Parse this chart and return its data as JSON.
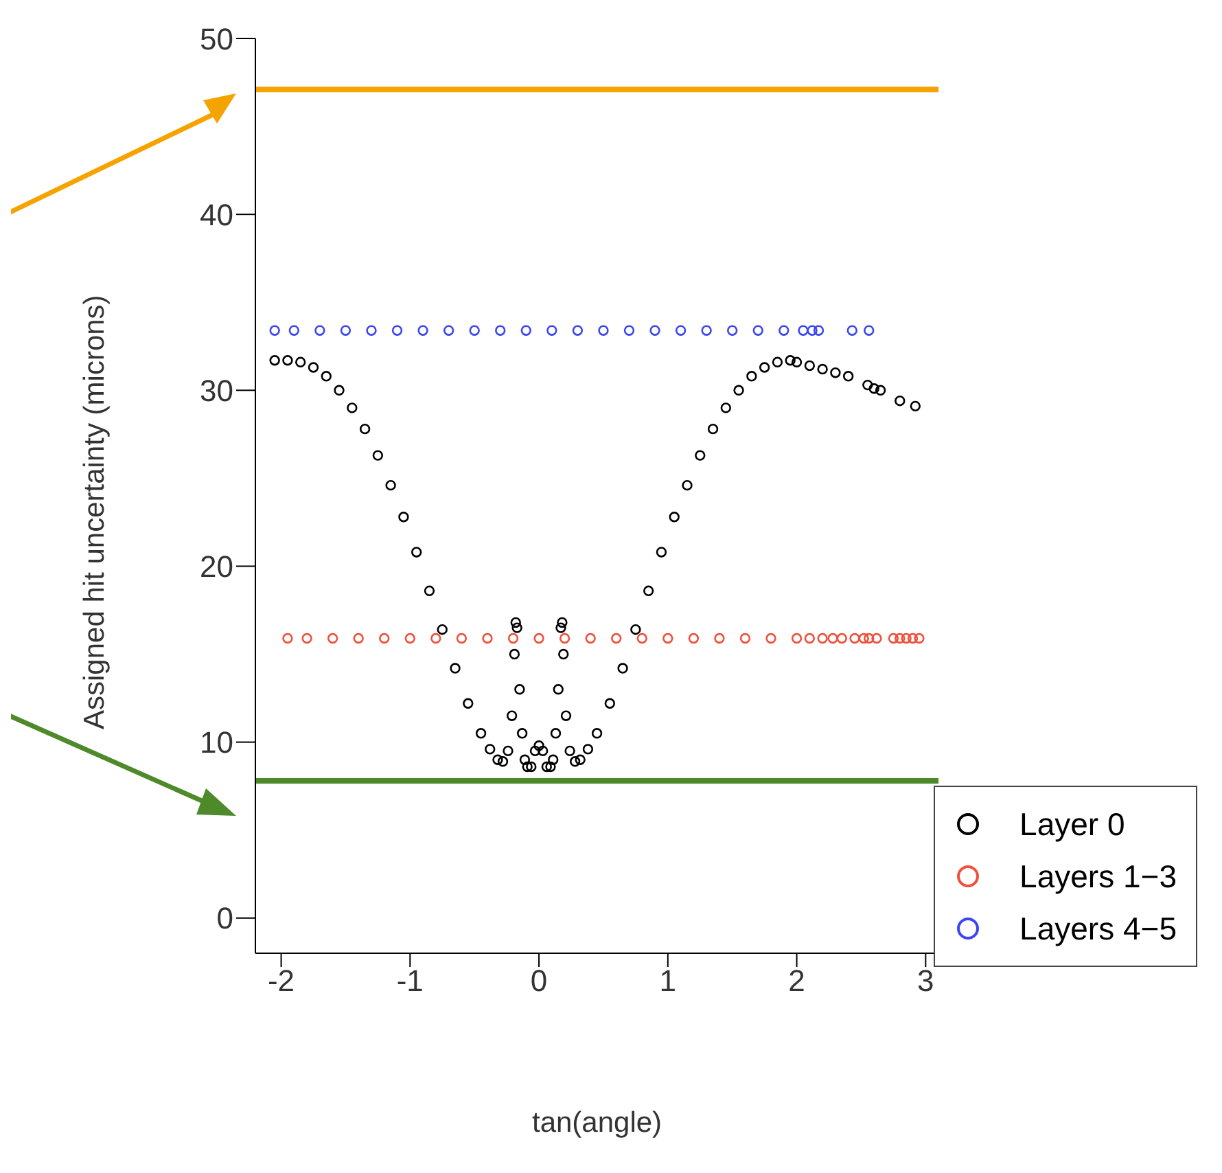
{
  "chart_data": {
    "type": "scatter",
    "xlabel": "tan(angle)",
    "ylabel": "Assigned hit uncertainty (microns)",
    "xlim": [
      -2.2,
      3.1
    ],
    "xticks": [
      -2,
      -1,
      0,
      1,
      2,
      3
    ],
    "ylim": [
      -2,
      50
    ],
    "yticks": [
      0,
      10,
      20,
      30,
      40,
      50
    ],
    "grid": false,
    "legend": "bottom right",
    "marker": "circle",
    "series": [
      {
        "name": "Layer 0",
        "color": "#000000",
        "x": [
          -2.05,
          -1.95,
          -1.85,
          -1.75,
          -1.65,
          -1.55,
          -1.45,
          -1.35,
          -1.25,
          -1.15,
          -1.05,
          -0.95,
          -0.85,
          -0.75,
          -0.65,
          -0.55,
          -0.45,
          -0.38,
          -0.32,
          -0.28,
          -0.24,
          -0.21,
          -0.19,
          -0.18,
          -0.17,
          -0.15,
          -0.13,
          -0.11,
          -0.09,
          -0.06,
          -0.03,
          0,
          0.03,
          0.06,
          0.09,
          0.11,
          0.13,
          0.15,
          0.17,
          0.18,
          0.19,
          0.21,
          0.24,
          0.28,
          0.32,
          0.38,
          0.45,
          0.55,
          0.65,
          0.75,
          0.85,
          0.95,
          1.05,
          1.15,
          1.25,
          1.35,
          1.45,
          1.55,
          1.65,
          1.75,
          1.85,
          1.95,
          2.0,
          2.1,
          2.2,
          2.3,
          2.4,
          2.55,
          2.6,
          2.65,
          2.8,
          2.92
        ],
        "values": [
          31.7,
          31.7,
          31.6,
          31.3,
          30.8,
          30.0,
          29.0,
          27.8,
          26.3,
          24.6,
          22.8,
          20.8,
          18.6,
          16.4,
          14.2,
          12.2,
          10.5,
          9.6,
          9.0,
          8.9,
          9.5,
          11.5,
          15.0,
          16.8,
          16.5,
          13.0,
          10.5,
          9.0,
          8.6,
          8.6,
          9.5,
          9.8,
          9.5,
          8.6,
          8.6,
          9.0,
          10.5,
          13.0,
          16.5,
          16.8,
          15.0,
          11.5,
          9.5,
          8.9,
          9.0,
          9.6,
          10.5,
          12.2,
          14.2,
          16.4,
          18.6,
          20.8,
          22.8,
          24.6,
          26.3,
          27.8,
          29.0,
          30.0,
          30.8,
          31.3,
          31.6,
          31.7,
          31.6,
          31.4,
          31.2,
          31.0,
          30.8,
          30.3,
          30.1,
          30.0,
          29.4,
          29.1
        ]
      },
      {
        "name": "Layers 1−3",
        "color": "#f0503c",
        "x": [
          -1.95,
          -1.8,
          -1.6,
          -1.4,
          -1.2,
          -1.0,
          -0.8,
          -0.6,
          -0.4,
          -0.2,
          0,
          0.2,
          0.4,
          0.6,
          0.8,
          1.0,
          1.2,
          1.4,
          1.6,
          1.8,
          2.0,
          2.1,
          2.2,
          2.28,
          2.35,
          2.45,
          2.52,
          2.56,
          2.62,
          2.75,
          2.8,
          2.85,
          2.9,
          2.95
        ],
        "values": [
          15.9,
          15.9,
          15.9,
          15.9,
          15.9,
          15.9,
          15.9,
          15.9,
          15.9,
          15.9,
          15.9,
          15.9,
          15.9,
          15.9,
          15.9,
          15.9,
          15.9,
          15.9,
          15.9,
          15.9,
          15.9,
          15.9,
          15.9,
          15.9,
          15.9,
          15.9,
          15.9,
          15.9,
          15.9,
          15.9,
          15.9,
          15.9,
          15.9,
          15.9
        ]
      },
      {
        "name": "Layers 4−5",
        "color": "#3c46f0",
        "x": [
          -2.05,
          -1.9,
          -1.7,
          -1.5,
          -1.3,
          -1.1,
          -0.9,
          -0.7,
          -0.5,
          -0.3,
          -0.1,
          0.1,
          0.3,
          0.5,
          0.7,
          0.9,
          1.1,
          1.3,
          1.5,
          1.7,
          1.9,
          2.05,
          2.12,
          2.17,
          2.43,
          2.56
        ],
        "values": [
          33.4,
          33.4,
          33.4,
          33.4,
          33.4,
          33.4,
          33.4,
          33.4,
          33.4,
          33.4,
          33.4,
          33.4,
          33.4,
          33.4,
          33.4,
          33.4,
          33.4,
          33.4,
          33.4,
          33.4,
          33.4,
          33.4,
          33.4,
          33.4,
          33.4,
          33.4
        ]
      }
    ],
    "ref_lines": [
      {
        "axis": "y",
        "value": 47.1,
        "color": "#f5a300"
      },
      {
        "axis": "y",
        "value": 7.8,
        "color": "#4e8a2a"
      }
    ]
  }
}
